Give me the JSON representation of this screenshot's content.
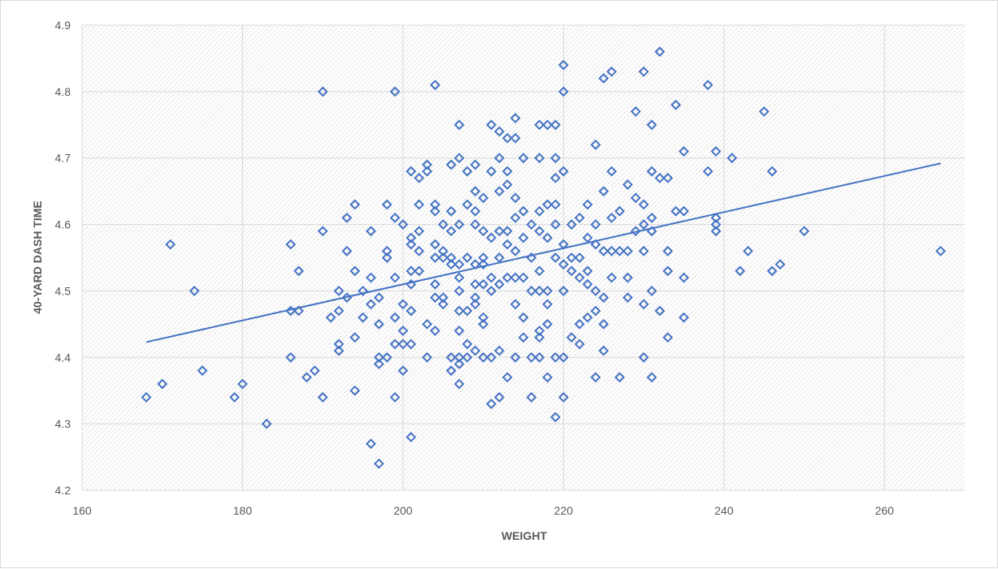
{
  "chart_data": {
    "type": "scatter",
    "title": "",
    "xlabel": "WEIGHT",
    "ylabel": "40-YARD DASH TIME",
    "xlim": [
      160,
      270
    ],
    "ylim": [
      4.2,
      4.9
    ],
    "xticks": [
      160,
      180,
      200,
      220,
      240,
      260
    ],
    "yticks": [
      4.2,
      4.3,
      4.4,
      4.5,
      4.6,
      4.7,
      4.8,
      4.9
    ],
    "grid": true,
    "legend": "none",
    "marker_color": "#4472c4",
    "marker": "diamond-open",
    "trendline": {
      "type": "linear",
      "x": [
        168,
        267
      ],
      "y": [
        4.423,
        4.692
      ]
    },
    "points": [
      [
        168,
        4.34
      ],
      [
        170,
        4.36
      ],
      [
        171,
        4.57
      ],
      [
        174,
        4.5
      ],
      [
        175,
        4.38
      ],
      [
        179,
        4.34
      ],
      [
        180,
        4.36
      ],
      [
        183,
        4.3
      ],
      [
        186,
        4.57
      ],
      [
        186,
        4.47
      ],
      [
        186,
        4.4
      ],
      [
        187,
        4.53
      ],
      [
        187,
        4.47
      ],
      [
        188,
        4.37
      ],
      [
        189,
        4.38
      ],
      [
        190,
        4.8
      ],
      [
        190,
        4.59
      ],
      [
        190,
        4.34
      ],
      [
        191,
        4.46
      ],
      [
        192,
        4.5
      ],
      [
        192,
        4.47
      ],
      [
        192,
        4.42
      ],
      [
        192,
        4.41
      ],
      [
        193,
        4.61
      ],
      [
        193,
        4.56
      ],
      [
        193,
        4.49
      ],
      [
        194,
        4.63
      ],
      [
        194,
        4.53
      ],
      [
        194,
        4.43
      ],
      [
        194,
        4.35
      ],
      [
        195,
        4.5
      ],
      [
        195,
        4.46
      ],
      [
        196,
        4.59
      ],
      [
        196,
        4.52
      ],
      [
        196,
        4.48
      ],
      [
        196,
        4.27
      ],
      [
        197,
        4.49
      ],
      [
        197,
        4.45
      ],
      [
        197,
        4.4
      ],
      [
        197,
        4.39
      ],
      [
        197,
        4.24
      ],
      [
        198,
        4.63
      ],
      [
        198,
        4.56
      ],
      [
        198,
        4.55
      ],
      [
        198,
        4.4
      ],
      [
        199,
        4.8
      ],
      [
        199,
        4.61
      ],
      [
        199,
        4.52
      ],
      [
        199,
        4.46
      ],
      [
        199,
        4.42
      ],
      [
        199,
        4.34
      ],
      [
        200,
        4.6
      ],
      [
        200,
        4.48
      ],
      [
        200,
        4.44
      ],
      [
        200,
        4.42
      ],
      [
        200,
        4.38
      ],
      [
        201,
        4.68
      ],
      [
        201,
        4.58
      ],
      [
        201,
        4.57
      ],
      [
        201,
        4.53
      ],
      [
        201,
        4.51
      ],
      [
        201,
        4.47
      ],
      [
        201,
        4.42
      ],
      [
        201,
        4.28
      ],
      [
        202,
        4.67
      ],
      [
        202,
        4.63
      ],
      [
        202,
        4.59
      ],
      [
        202,
        4.56
      ],
      [
        202,
        4.53
      ],
      [
        203,
        4.69
      ],
      [
        203,
        4.68
      ],
      [
        203,
        4.45
      ],
      [
        203,
        4.4
      ],
      [
        204,
        4.81
      ],
      [
        204,
        4.63
      ],
      [
        204,
        4.62
      ],
      [
        204,
        4.57
      ],
      [
        204,
        4.55
      ],
      [
        204,
        4.51
      ],
      [
        204,
        4.49
      ],
      [
        204,
        4.44
      ],
      [
        205,
        4.6
      ],
      [
        205,
        4.56
      ],
      [
        205,
        4.55
      ],
      [
        205,
        4.49
      ],
      [
        205,
        4.48
      ],
      [
        206,
        4.69
      ],
      [
        206,
        4.62
      ],
      [
        206,
        4.59
      ],
      [
        206,
        4.55
      ],
      [
        206,
        4.54
      ],
      [
        206,
        4.4
      ],
      [
        206,
        4.38
      ],
      [
        207,
        4.75
      ],
      [
        207,
        4.7
      ],
      [
        207,
        4.6
      ],
      [
        207,
        4.54
      ],
      [
        207,
        4.52
      ],
      [
        207,
        4.5
      ],
      [
        207,
        4.47
      ],
      [
        207,
        4.44
      ],
      [
        207,
        4.4
      ],
      [
        207,
        4.39
      ],
      [
        207,
        4.36
      ],
      [
        208,
        4.68
      ],
      [
        208,
        4.63
      ],
      [
        208,
        4.55
      ],
      [
        208,
        4.47
      ],
      [
        208,
        4.42
      ],
      [
        208,
        4.4
      ],
      [
        209,
        4.69
      ],
      [
        209,
        4.65
      ],
      [
        209,
        4.62
      ],
      [
        209,
        4.6
      ],
      [
        209,
        4.54
      ],
      [
        209,
        4.51
      ],
      [
        209,
        4.49
      ],
      [
        209,
        4.48
      ],
      [
        209,
        4.41
      ],
      [
        210,
        4.64
      ],
      [
        210,
        4.59
      ],
      [
        210,
        4.55
      ],
      [
        210,
        4.54
      ],
      [
        210,
        4.51
      ],
      [
        210,
        4.46
      ],
      [
        210,
        4.45
      ],
      [
        210,
        4.4
      ],
      [
        211,
        4.75
      ],
      [
        211,
        4.68
      ],
      [
        211,
        4.58
      ],
      [
        211,
        4.52
      ],
      [
        211,
        4.5
      ],
      [
        211,
        4.4
      ],
      [
        211,
        4.33
      ],
      [
        212,
        4.74
      ],
      [
        212,
        4.7
      ],
      [
        212,
        4.65
      ],
      [
        212,
        4.59
      ],
      [
        212,
        4.55
      ],
      [
        212,
        4.51
      ],
      [
        212,
        4.41
      ],
      [
        212,
        4.34
      ],
      [
        213,
        4.73
      ],
      [
        213,
        4.68
      ],
      [
        213,
        4.66
      ],
      [
        213,
        4.59
      ],
      [
        213,
        4.57
      ],
      [
        213,
        4.52
      ],
      [
        213,
        4.37
      ],
      [
        214,
        4.76
      ],
      [
        214,
        4.73
      ],
      [
        214,
        4.64
      ],
      [
        214,
        4.61
      ],
      [
        214,
        4.56
      ],
      [
        214,
        4.52
      ],
      [
        214,
        4.48
      ],
      [
        214,
        4.4
      ],
      [
        215,
        4.7
      ],
      [
        215,
        4.62
      ],
      [
        215,
        4.58
      ],
      [
        215,
        4.52
      ],
      [
        215,
        4.46
      ],
      [
        215,
        4.43
      ],
      [
        216,
        4.6
      ],
      [
        216,
        4.55
      ],
      [
        216,
        4.5
      ],
      [
        216,
        4.4
      ],
      [
        216,
        4.34
      ],
      [
        217,
        4.75
      ],
      [
        217,
        4.7
      ],
      [
        217,
        4.62
      ],
      [
        217,
        4.59
      ],
      [
        217,
        4.53
      ],
      [
        217,
        4.5
      ],
      [
        217,
        4.44
      ],
      [
        217,
        4.43
      ],
      [
        217,
        4.4
      ],
      [
        218,
        4.75
      ],
      [
        218,
        4.63
      ],
      [
        218,
        4.58
      ],
      [
        218,
        4.5
      ],
      [
        218,
        4.48
      ],
      [
        218,
        4.45
      ],
      [
        218,
        4.37
      ],
      [
        219,
        4.75
      ],
      [
        219,
        4.7
      ],
      [
        219,
        4.67
      ],
      [
        219,
        4.63
      ],
      [
        219,
        4.6
      ],
      [
        219,
        4.55
      ],
      [
        219,
        4.4
      ],
      [
        219,
        4.31
      ],
      [
        220,
        4.84
      ],
      [
        220,
        4.8
      ],
      [
        220,
        4.68
      ],
      [
        220,
        4.57
      ],
      [
        220,
        4.54
      ],
      [
        220,
        4.5
      ],
      [
        220,
        4.4
      ],
      [
        220,
        4.34
      ],
      [
        221,
        4.6
      ],
      [
        221,
        4.55
      ],
      [
        221,
        4.53
      ],
      [
        221,
        4.43
      ],
      [
        222,
        4.61
      ],
      [
        222,
        4.55
      ],
      [
        222,
        4.52
      ],
      [
        222,
        4.45
      ],
      [
        222,
        4.42
      ],
      [
        223,
        4.63
      ],
      [
        223,
        4.58
      ],
      [
        223,
        4.53
      ],
      [
        223,
        4.51
      ],
      [
        223,
        4.46
      ],
      [
        224,
        4.72
      ],
      [
        224,
        4.6
      ],
      [
        224,
        4.57
      ],
      [
        224,
        4.5
      ],
      [
        224,
        4.47
      ],
      [
        224,
        4.37
      ],
      [
        225,
        4.82
      ],
      [
        225,
        4.65
      ],
      [
        225,
        4.56
      ],
      [
        225,
        4.49
      ],
      [
        225,
        4.45
      ],
      [
        225,
        4.41
      ],
      [
        226,
        4.83
      ],
      [
        226,
        4.68
      ],
      [
        226,
        4.61
      ],
      [
        226,
        4.56
      ],
      [
        226,
        4.52
      ],
      [
        227,
        4.62
      ],
      [
        227,
        4.56
      ],
      [
        227,
        4.37
      ],
      [
        228,
        4.66
      ],
      [
        228,
        4.56
      ],
      [
        228,
        4.52
      ],
      [
        228,
        4.49
      ],
      [
        229,
        4.77
      ],
      [
        229,
        4.64
      ],
      [
        229,
        4.59
      ],
      [
        230,
        4.83
      ],
      [
        230,
        4.63
      ],
      [
        230,
        4.6
      ],
      [
        230,
        4.56
      ],
      [
        230,
        4.48
      ],
      [
        230,
        4.4
      ],
      [
        231,
        4.75
      ],
      [
        231,
        4.68
      ],
      [
        231,
        4.61
      ],
      [
        231,
        4.59
      ],
      [
        231,
        4.5
      ],
      [
        231,
        4.37
      ],
      [
        232,
        4.86
      ],
      [
        232,
        4.67
      ],
      [
        232,
        4.47
      ],
      [
        233,
        4.67
      ],
      [
        233,
        4.56
      ],
      [
        233,
        4.53
      ],
      [
        233,
        4.43
      ],
      [
        234,
        4.78
      ],
      [
        234,
        4.62
      ],
      [
        235,
        4.71
      ],
      [
        235,
        4.62
      ],
      [
        235,
        4.52
      ],
      [
        235,
        4.46
      ],
      [
        238,
        4.81
      ],
      [
        238,
        4.68
      ],
      [
        239,
        4.71
      ],
      [
        239,
        4.61
      ],
      [
        239,
        4.6
      ],
      [
        239,
        4.59
      ],
      [
        241,
        4.7
      ],
      [
        242,
        4.53
      ],
      [
        243,
        4.56
      ],
      [
        245,
        4.77
      ],
      [
        246,
        4.68
      ],
      [
        246,
        4.53
      ],
      [
        247,
        4.54
      ],
      [
        250,
        4.59
      ],
      [
        267,
        4.56
      ]
    ]
  }
}
